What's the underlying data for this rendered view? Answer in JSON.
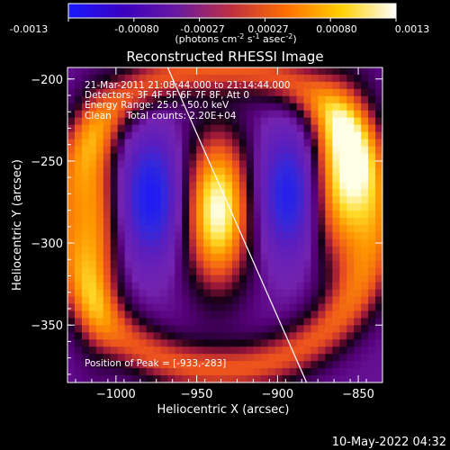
{
  "colorbar": {
    "ticks": [
      "-0.0013",
      "-0.00080",
      "-0.00027",
      "0.00027",
      "0.00080",
      "0.0013"
    ],
    "unit_label": "(photons cm",
    "unit_sup1": "-2",
    "unit_mid": " s",
    "unit_sup2": "-1",
    "unit_end": " asec",
    "unit_sup3": "-2",
    "unit_close": ")",
    "colors": [
      "#1a1aff",
      "#3a00c0",
      "#6a1aa0",
      "#c03040",
      "#ff7000",
      "#ffd000",
      "#ffffff"
    ]
  },
  "chart_data": {
    "type": "heatmap",
    "title": "Reconstructed RHESSI Image",
    "xlabel": "Heliocentric X (arcsec)",
    "ylabel": "Heliocentric Y (arcsec)",
    "xlim": [
      -1030,
      -835
    ],
    "ylim": [
      -385,
      -193
    ],
    "x_ticks": [
      -1000,
      -950,
      -900,
      -850
    ],
    "y_ticks": [
      -200,
      -250,
      -300,
      -350
    ],
    "x_tick_labels": [
      "−1000",
      "−950",
      "−900",
      "−850"
    ],
    "y_tick_labels": [
      "−200",
      "−250",
      "−300",
      "−350"
    ],
    "annotations": {
      "time": "21-Mar-2011 21:08:44.000 to 21:14:44.000",
      "detectors": "Detectors: 3F 4F 5F 6F 7F 8F, Att 0",
      "energy": "Energy Range: 25.0 - 50.0 keV",
      "clean": "Clean     Total counts: 2.20E+04",
      "peak": "Position of Peak = [-933,-283]"
    },
    "peak": [
      -933,
      -283
    ],
    "limb_line": [
      [
        -968,
        -193
      ],
      [
        -882,
        -385
      ]
    ],
    "sources": [
      {
        "kind": "positive",
        "x": -937,
        "y": -280,
        "sx": 14,
        "sy": 32,
        "amp": 1.0
      },
      {
        "kind": "negative",
        "x": -978,
        "y": -272,
        "sx": 12,
        "sy": 26,
        "amp": -0.85
      },
      {
        "kind": "negative",
        "x": -893,
        "y": -270,
        "sx": 12,
        "sy": 26,
        "amp": -0.8
      },
      {
        "kind": "positive",
        "x": -860,
        "y": -260,
        "sx": 14,
        "sy": 36,
        "amp": 0.85
      },
      {
        "kind": "positive",
        "x": -1012,
        "y": -290,
        "sx": 10,
        "sy": 45,
        "amp": 0.55
      },
      {
        "kind": "ring",
        "x": -935,
        "y": -285,
        "r": 92,
        "w": 11,
        "amp": 0.5
      }
    ],
    "footer_date": "10-May-2022 04:32"
  }
}
